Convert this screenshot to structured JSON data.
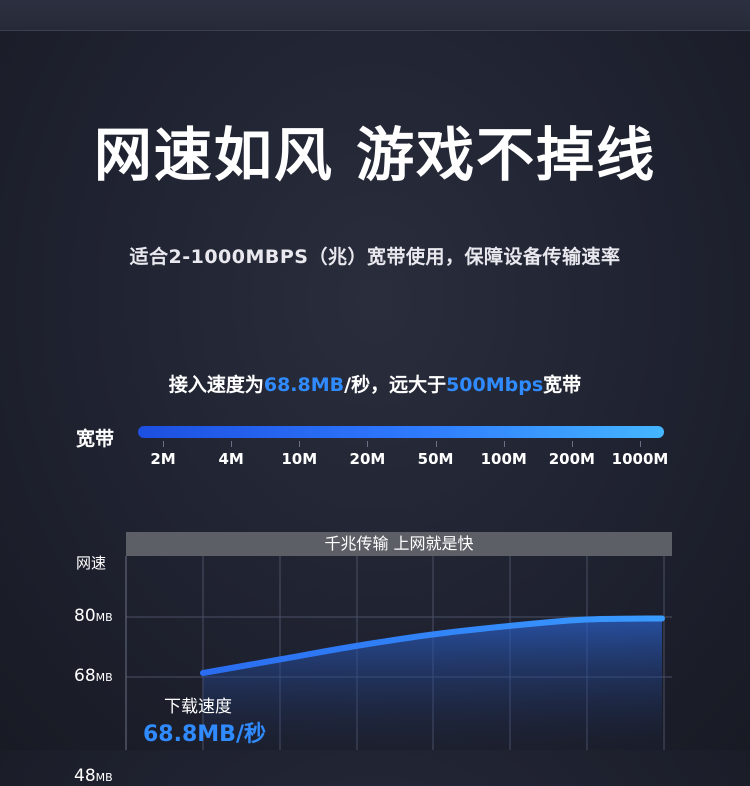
{
  "headline": "网速如风 游戏不掉线",
  "subtitle": "适合2-1000MBPS（兆）宽带使用，保障设备传输速率",
  "speed_line": {
    "prefix": "接入速度为",
    "speed": "68.8MB",
    "mid": "/秒，远大于",
    "bandwidth": "500Mbps",
    "suffix": "宽带"
  },
  "bandwidth_scale": {
    "label": "宽带",
    "ticks": [
      "2M",
      "4M",
      "10M",
      "20M",
      "50M",
      "100M",
      "200M",
      "1000M"
    ]
  },
  "chart_data": {
    "type": "area",
    "title": "千兆传输 上网就是快",
    "ylabel": "网速",
    "y_ticks": [
      {
        "value": 80,
        "label": "80",
        "unit": "MB"
      },
      {
        "value": 68,
        "label": "68",
        "unit": "MB"
      },
      {
        "value": 48,
        "label": "48",
        "unit": "MB"
      }
    ],
    "ylim": [
      45,
      91
    ],
    "series": [
      {
        "name": "下载速度",
        "x": [
          1,
          2,
          3,
          4,
          5,
          6,
          7
        ],
        "values": [
          68.8,
          71.5,
          74.2,
          76.5,
          78.2,
          79.5,
          79.7
        ]
      }
    ],
    "annotation": {
      "label": "下载速度",
      "value": "68.8MB/秒"
    },
    "colors": {
      "line": "#2f7cff",
      "area_top": "#2a60c8",
      "grid": "#4a5066"
    }
  }
}
